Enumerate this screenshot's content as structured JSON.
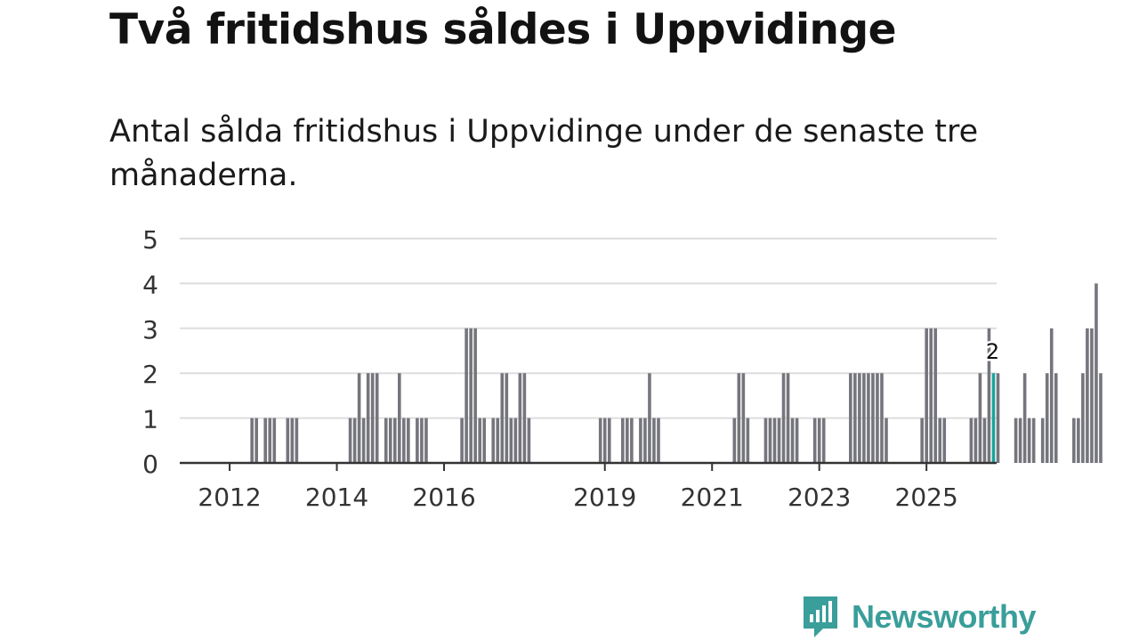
{
  "title": "Två fritidshus såldes i Uppvidinge",
  "subtitle": "Antal sålda fritidshus i Uppvidinge under de senaste tre månaderna.",
  "brand": {
    "name": "Newsworthy",
    "color": "#3a9e9a"
  },
  "colors": {
    "bar": "#75757d",
    "highlight": "#18a39b",
    "grid": "#dddddd",
    "axis": "#333333"
  },
  "chart_data": {
    "type": "bar",
    "title": "Två fritidshus såldes i Uppvidinge",
    "xlabel": "",
    "ylabel": "",
    "ylim": [
      0,
      5
    ],
    "yticks": [
      0,
      1,
      2,
      3,
      4,
      5
    ],
    "start": {
      "year": 2011,
      "month": 10
    },
    "xticks": [
      {
        "label": "2012",
        "index": 3
      },
      {
        "label": "2014",
        "index": 27
      },
      {
        "label": "2016",
        "index": 51
      },
      {
        "label": "2019",
        "index": 87
      },
      {
        "label": "2021",
        "index": 111
      },
      {
        "label": "2023",
        "index": 135
      },
      {
        "label": "2025",
        "index": 159
      }
    ],
    "values": [
      0,
      0,
      0,
      0,
      0,
      0,
      0,
      0,
      1,
      1,
      0,
      1,
      1,
      1,
      0,
      0,
      1,
      1,
      1,
      0,
      0,
      0,
      0,
      0,
      0,
      0,
      0,
      0,
      0,
      0,
      1,
      1,
      2,
      1,
      2,
      2,
      2,
      0,
      1,
      1,
      1,
      2,
      1,
      1,
      0,
      1,
      1,
      1,
      0,
      0,
      0,
      0,
      0,
      0,
      0,
      1,
      3,
      3,
      3,
      1,
      1,
      0,
      1,
      1,
      2,
      2,
      1,
      1,
      2,
      2,
      1,
      0,
      0,
      0,
      0,
      0,
      0,
      0,
      0,
      0,
      0,
      0,
      0,
      0,
      0,
      0,
      1,
      1,
      1,
      0,
      0,
      1,
      1,
      1,
      0,
      1,
      1,
      2,
      1,
      1,
      0,
      0,
      0,
      0,
      0,
      0,
      0,
      0,
      0,
      0,
      0,
      0,
      0,
      0,
      0,
      0,
      1,
      2,
      2,
      1,
      0,
      0,
      0,
      1,
      1,
      1,
      1,
      2,
      2,
      1,
      1,
      0,
      0,
      0,
      1,
      1,
      1,
      0,
      0,
      0,
      0,
      0,
      2,
      2,
      2,
      2,
      2,
      2,
      2,
      2,
      1,
      0,
      0,
      0,
      0,
      0,
      0,
      0,
      1,
      3,
      3,
      3,
      1,
      1,
      0,
      0,
      0,
      0,
      0,
      1,
      1,
      2,
      1,
      3,
      2,
      2,
      0,
      0,
      0,
      1,
      1,
      2,
      1,
      1,
      0,
      1,
      2,
      3,
      2,
      0,
      0,
      0,
      1,
      1,
      2,
      3,
      3,
      4,
      2
    ],
    "highlight": {
      "index": 174,
      "label": "2"
    }
  }
}
